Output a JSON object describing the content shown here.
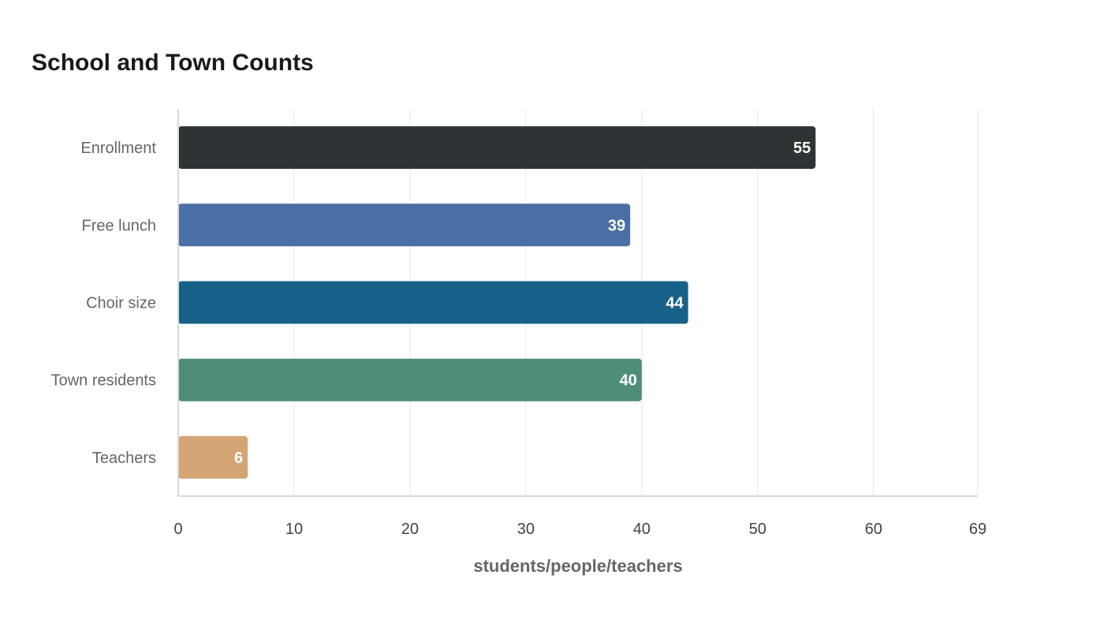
{
  "chart_data": {
    "type": "bar",
    "orientation": "horizontal",
    "title": "School and Town Counts",
    "xlabel": "students/people/teachers",
    "ylabel": "",
    "xlim": [
      0,
      69
    ],
    "x_ticks": [
      0,
      10,
      20,
      30,
      40,
      50,
      60,
      69
    ],
    "categories": [
      "Enrollment",
      "Free lunch",
      "Choir size",
      "Town residents",
      "Teachers"
    ],
    "values": [
      55,
      39,
      44,
      40,
      6
    ],
    "colors": [
      "#2e3436",
      "#4a6fa5",
      "#176087",
      "#4f8d7b",
      "#d4a574"
    ],
    "grid": true,
    "legend": "none"
  }
}
